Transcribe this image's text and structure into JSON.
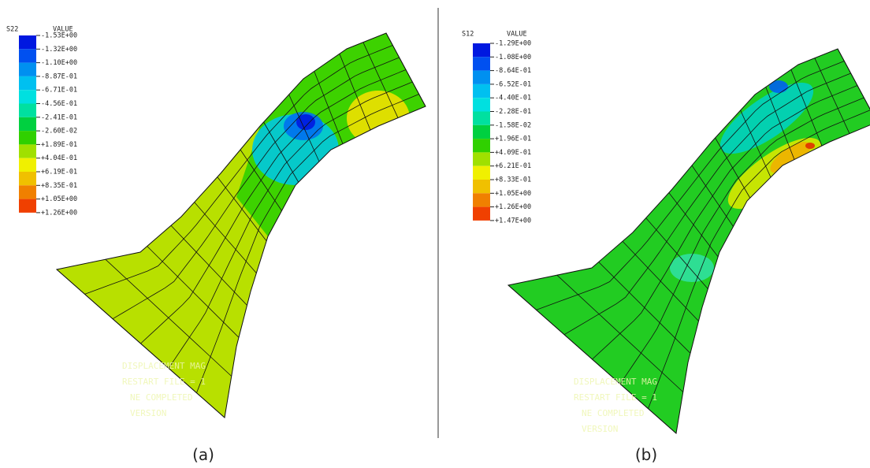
{
  "panels": [
    {
      "variable": "S22",
      "header": "VALUE",
      "legend": [
        "-1.53E+00",
        "-1.32E+00",
        "-1.10E+00",
        "-8.87E-01",
        "-6.71E-01",
        "-4.56E-01",
        "-2.41E-01",
        "-2.60E-02",
        "+1.89E-01",
        "+4.04E-01",
        "+6.19E-01",
        "+8.35E-01",
        "+1.05E+00",
        "+1.26E+00"
      ],
      "overlay": [
        "DISPLACEMENT MAG",
        "RESTART FILE = 1",
        "NE COMPLETED",
        "VERSION"
      ],
      "caption": "(a)"
    },
    {
      "variable": "S12",
      "header": "VALUE",
      "legend": [
        "-1.29E+00",
        "-1.08E+00",
        "-8.64E-01",
        "-6.52E-01",
        "-4.40E-01",
        "-2.28E-01",
        "-1.58E-02",
        "+1.96E-01",
        "+4.09E-01",
        "+6.21E-01",
        "+8.33E-01",
        "+1.05E+00",
        "+1.26E+00",
        "+1.47E+00"
      ],
      "overlay": [
        "DISPLACEMENT MAG",
        "RESTART FILE = 1",
        "NE COMPLETED",
        "VERSION"
      ],
      "caption": "(b)"
    }
  ]
}
